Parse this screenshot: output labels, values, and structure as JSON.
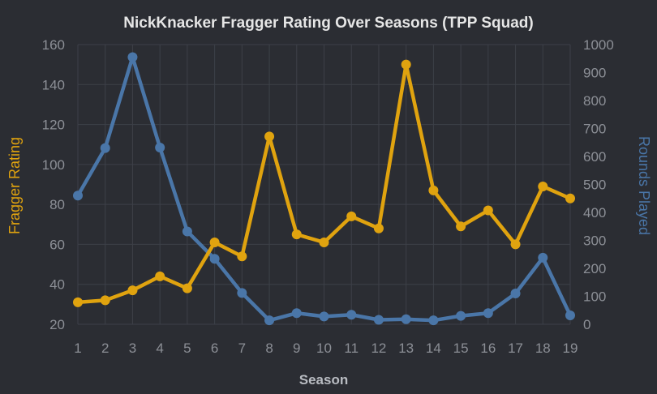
{
  "chart_data": {
    "type": "line",
    "title": "NickKnacker Fragger Rating Over Seasons (TPP Squad)",
    "xlabel": "Season",
    "x": [
      1,
      2,
      3,
      4,
      5,
      6,
      7,
      8,
      9,
      10,
      11,
      12,
      13,
      14,
      15,
      16,
      17,
      18,
      19
    ],
    "grid": true,
    "y_left": {
      "label": "Fragger Rating",
      "ylim": [
        20,
        160
      ],
      "ticks": [
        20,
        40,
        60,
        80,
        100,
        120,
        140,
        160
      ],
      "color": "#e0a30f"
    },
    "y_right": {
      "label": "Rounds Played",
      "ylim": [
        0,
        1000
      ],
      "ticks": [
        0,
        100,
        200,
        300,
        400,
        500,
        600,
        700,
        800,
        900,
        1000
      ],
      "color": "#4a76a8"
    },
    "series": [
      {
        "name": "Fragger Rating",
        "axis": "left",
        "color": "#e0a30f",
        "values": [
          31,
          32,
          37,
          44,
          38,
          61,
          54,
          114,
          65,
          61,
          74,
          68,
          150,
          87,
          69,
          77,
          60,
          89,
          83
        ]
      },
      {
        "name": "Rounds Played",
        "axis": "right",
        "color": "#4a76a8",
        "values": [
          460,
          630,
          955,
          632,
          332,
          234,
          112,
          14,
          40,
          28,
          34,
          16,
          18,
          14,
          30,
          40,
          110,
          238,
          32
        ]
      }
    ]
  }
}
